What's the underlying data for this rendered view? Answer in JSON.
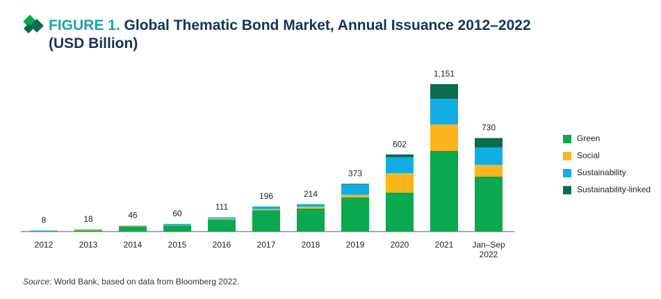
{
  "chart_data": {
    "type": "stacked-bar",
    "title_label": "FIGURE 1.",
    "title": "Global Thematic Bond Market, Annual Issuance 2012–2022 (USD Billion)",
    "categories": [
      "2012",
      "2013",
      "2014",
      "2015",
      "2016",
      "2017",
      "2018",
      "2019",
      "2020",
      "2021",
      "Jan–Sep\n2022"
    ],
    "series": [
      {
        "name": "Green",
        "color": "#0aa84f",
        "values": [
          3,
          10,
          38,
          48,
          94,
          166,
          180,
          267,
          305,
          630,
          429
        ]
      },
      {
        "name": "Social",
        "color": "#fbb41b",
        "values": [
          0,
          6,
          3,
          4,
          7,
          10,
          14,
          20,
          150,
          206,
          92
        ]
      },
      {
        "name": "Sustainability",
        "color": "#11aee5",
        "values": [
          5,
          2,
          5,
          8,
          10,
          20,
          19,
          80,
          125,
          201,
          136
        ]
      },
      {
        "name": "Sustainability-linked",
        "color": "#0a6b4f",
        "values": [
          0,
          0,
          0,
          0,
          0,
          0,
          1,
          6,
          22,
          114,
          73
        ]
      }
    ],
    "totals": [
      8,
      18,
      46,
      60,
      111,
      196,
      214,
      373,
      602,
      {
        "value": 1151,
        "label": "1,151"
      },
      730
    ],
    "source_label": "Source:",
    "source": "World Bank, based on data from Bloomberg 2022."
  }
}
